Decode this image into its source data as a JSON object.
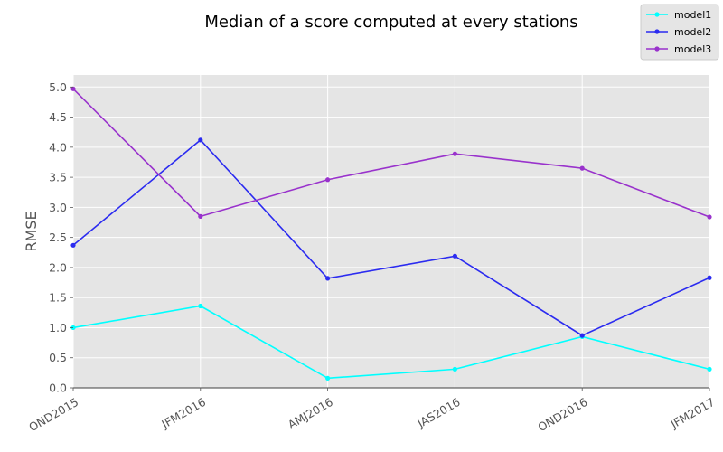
{
  "chart_data": {
    "type": "line",
    "title": "Median of a score computed at every stations",
    "xlabel": "",
    "ylabel": "RMSE",
    "categories": [
      "OND2015",
      "JFM2016",
      "AMJ2016",
      "JAS2016",
      "OND2016",
      "JFM2017"
    ],
    "ylim": [
      0,
      5.2
    ],
    "yticks": [
      "0.0",
      "0.5",
      "1.0",
      "1.5",
      "2.0",
      "2.5",
      "3.0",
      "3.5",
      "4.0",
      "4.5",
      "5.0"
    ],
    "grid": true,
    "legend_position": "top-right",
    "series": [
      {
        "name": "model1",
        "color": "#00ffff",
        "values": [
          1.0,
          1.36,
          0.16,
          0.31,
          0.85,
          0.31
        ]
      },
      {
        "name": "model2",
        "color": "#2b2bf0",
        "values": [
          2.37,
          4.12,
          1.82,
          2.19,
          0.87,
          1.83
        ]
      },
      {
        "name": "model3",
        "color": "#9932cc",
        "values": [
          4.97,
          2.85,
          3.46,
          3.89,
          3.65,
          2.84
        ]
      }
    ]
  }
}
